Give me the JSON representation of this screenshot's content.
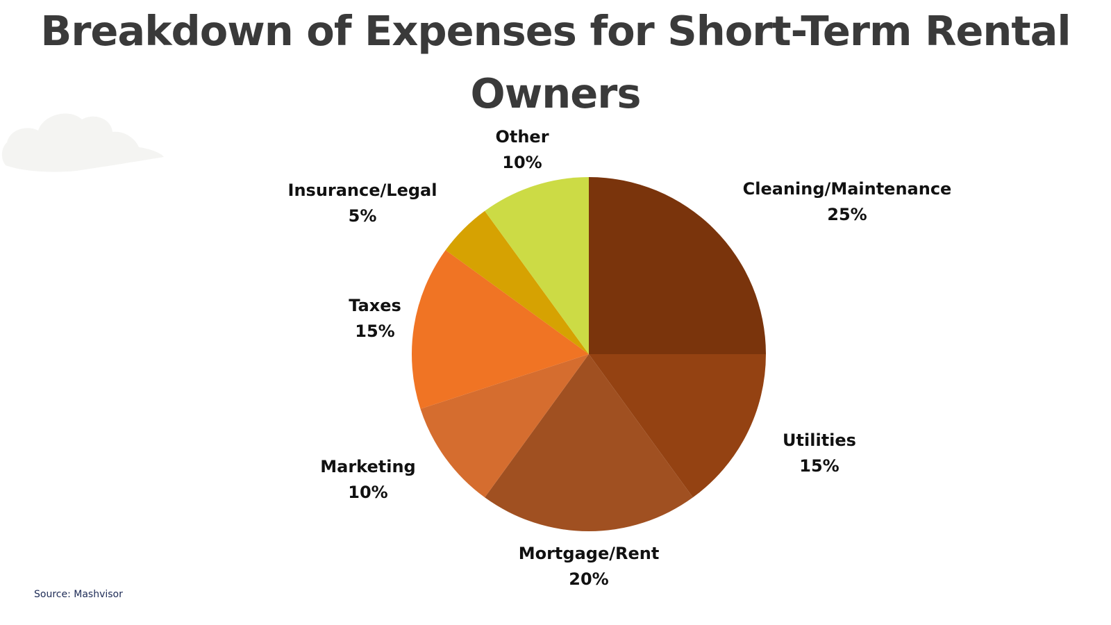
{
  "title": "Breakdown of Expenses for Short-Term Rental Owners",
  "source": "Source: Mashvisor",
  "chart_data": {
    "type": "pie",
    "title": "Breakdown of Expenses for Short-Term Rental Owners",
    "unit": "%",
    "start_angle_deg": 0,
    "direction": "clockwise",
    "slices": [
      {
        "label": "Cleaning/Maintenance",
        "value": 25,
        "value_label": "25%",
        "color": "#7a340c"
      },
      {
        "label": "Utilities",
        "value": 15,
        "value_label": "15%",
        "color": "#944212"
      },
      {
        "label": "Mortgage/Rent",
        "value": 20,
        "value_label": "20%",
        "color": "#a05021"
      },
      {
        "label": "Marketing",
        "value": 10,
        "value_label": "10%",
        "color": "#d56d2f"
      },
      {
        "label": "Taxes",
        "value": 15,
        "value_label": "15%",
        "color": "#f07424"
      },
      {
        "label": "Insurance/Legal",
        "value": 5,
        "value_label": "5%",
        "color": "#d6a202"
      },
      {
        "label": "Other",
        "value": 10,
        "value_label": "10%",
        "color": "#ccdb45"
      }
    ]
  }
}
